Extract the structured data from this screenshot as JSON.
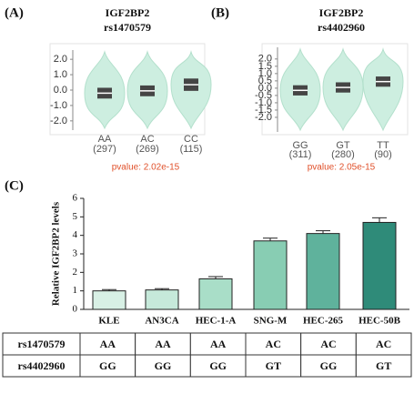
{
  "chart_data": [
    {
      "type": "violin",
      "panel": "(A)",
      "title": "IGF2BP2",
      "subtitle": "rs1470579",
      "categories": [
        "AA",
        "AC",
        "CC"
      ],
      "counts": [
        "(297)",
        "(269)",
        "(115)"
      ],
      "q1": [
        -0.55,
        -0.4,
        -0.05
      ],
      "values": [
        -0.2,
        -0.05,
        0.35
      ],
      "q3": [
        0.15,
        0.3,
        0.75
      ],
      "color": "#cdeee0",
      "box_color": "#454545",
      "annotation": "pvalue: 2.02e-15",
      "ylim": [
        -2.6,
        2.6
      ],
      "yticks": [
        {
          "value": 2,
          "label": "2.0"
        },
        {
          "value": 1,
          "label": "1.0"
        },
        {
          "value": 0,
          "label": "0.0"
        },
        {
          "value": -1,
          "label": "-1.0"
        },
        {
          "value": -2,
          "label": "-2.0"
        }
      ]
    },
    {
      "type": "violin",
      "panel": "(B)",
      "title": "IGF2BP2",
      "subtitle": "rs4402960",
      "categories": [
        "GG",
        "GT",
        "TT"
      ],
      "counts": [
        "(311)",
        "(280)",
        "(90)"
      ],
      "q1": [
        -0.5,
        -0.3,
        0.1
      ],
      "values": [
        -0.15,
        0.05,
        0.45
      ],
      "q3": [
        0.2,
        0.4,
        0.8
      ],
      "color": "#cdeee0",
      "box_color": "#454545",
      "annotation": "pvalue: 2.05e-15",
      "ylim": [
        -3,
        2.8
      ],
      "yticks": [
        {
          "value": 2,
          "label": "2.0"
        },
        {
          "value": 1.5,
          "label": "1.5"
        },
        {
          "value": 1,
          "label": "1.0"
        },
        {
          "value": 0.5,
          "label": "0.5"
        },
        {
          "value": 0,
          "label": "0.0"
        },
        {
          "value": -0.5,
          "label": "-0.5"
        },
        {
          "value": -1,
          "label": "-1.0"
        },
        {
          "value": -1.5,
          "label": "-1.5"
        },
        {
          "value": -2,
          "label": "-2.0"
        }
      ]
    },
    {
      "type": "bar",
      "panel": "(C)",
      "y_label": "Relative IGF2BP2 levels",
      "categories": [
        "KLE",
        "AN3CA",
        "HEC-1-A",
        "SNG-M",
        "HEC-265",
        "HEC-50B"
      ],
      "values": [
        1.0,
        1.05,
        1.65,
        3.7,
        4.1,
        4.7
      ],
      "errors": [
        0.07,
        0.07,
        0.12,
        0.15,
        0.15,
        0.25
      ],
      "colors": [
        "#d8f0e5",
        "#c6e9da",
        "#a9dec8",
        "#88cdb3",
        "#5fb29c",
        "#2f8b79"
      ],
      "ylim": [
        0,
        6
      ],
      "yticks": [
        0,
        1,
        2,
        3,
        4,
        5,
        6
      ]
    }
  ],
  "table": {
    "rows": [
      [
        "rs1470579",
        "AA",
        "AA",
        "AA",
        "AC",
        "AC",
        "AC"
      ],
      [
        "rs4402960",
        "GG",
        "GG",
        "GG",
        "GT",
        "GG",
        "GT"
      ]
    ]
  }
}
